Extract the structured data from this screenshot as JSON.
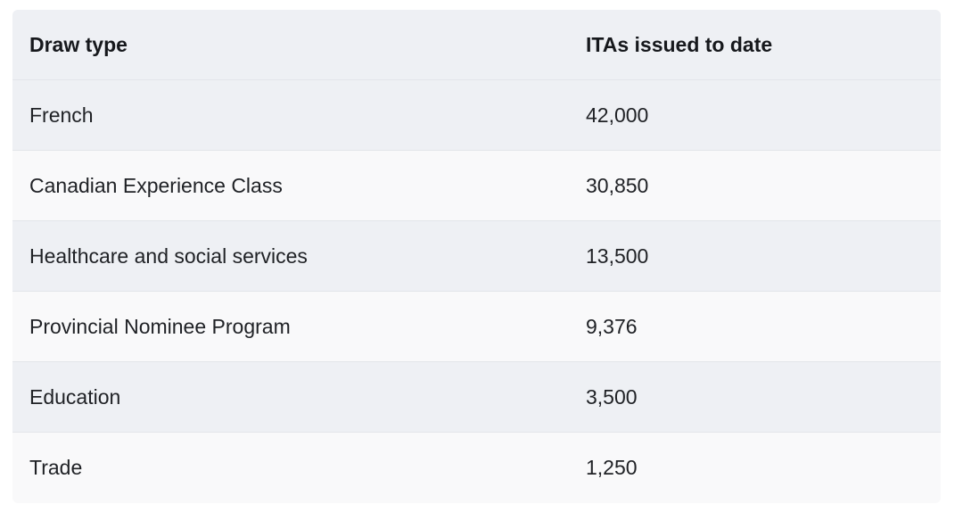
{
  "table": {
    "headers": {
      "draw_type": "Draw type",
      "itas": "ITAs issued to date"
    },
    "rows": [
      {
        "draw_type": "French",
        "itas": "42,000"
      },
      {
        "draw_type": "Canadian Experience Class",
        "itas": "30,850"
      },
      {
        "draw_type": "Healthcare and social services",
        "itas": "13,500"
      },
      {
        "draw_type": "Provincial Nominee Program",
        "itas": "9,376"
      },
      {
        "draw_type": "Education",
        "itas": "3,500"
      },
      {
        "draw_type": "Trade",
        "itas": "1,250"
      }
    ]
  }
}
